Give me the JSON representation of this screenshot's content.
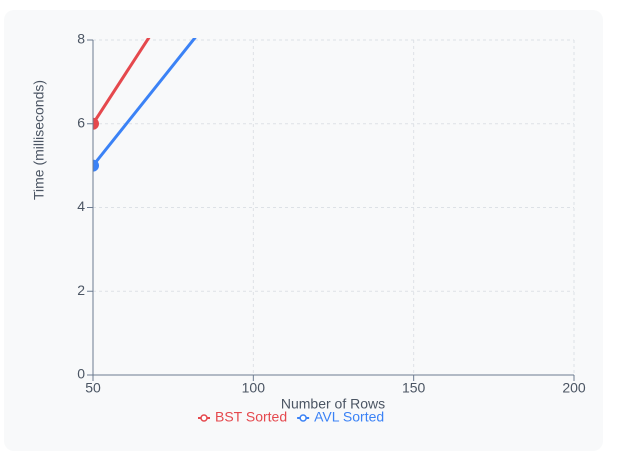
{
  "chart_data": {
    "type": "line",
    "x_label": "Number of Rows",
    "y_label": "Time (milliseconds)",
    "x": [
      50,
      100
    ],
    "series": [
      {
        "name": "BST Sorted",
        "color": "#e5484d",
        "values": [
          6,
          11.9
        ]
      },
      {
        "name": "AVL Sorted",
        "color": "#3b82f6",
        "values": [
          5,
          9.8
        ]
      }
    ],
    "xlim": [
      50,
      200
    ],
    "xticks": [
      50,
      100,
      150,
      200
    ],
    "ylim": [
      0,
      8
    ],
    "yticks": [
      0,
      2,
      4,
      6,
      8
    ],
    "grid": true,
    "legend": "bottom"
  }
}
